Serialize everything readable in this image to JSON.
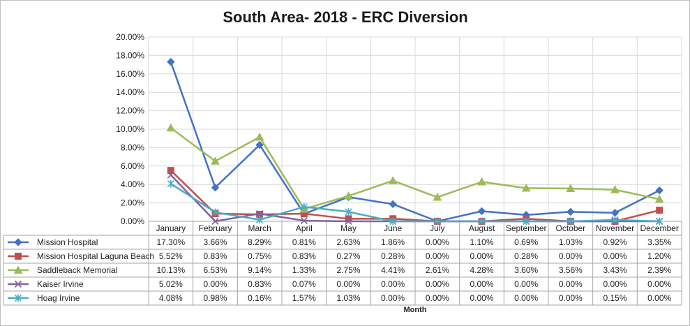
{
  "chart_data": {
    "type": "line",
    "title": "South Area- 2018  - ERC Diversion",
    "xlabel": "Month",
    "ylabel": "",
    "ylim": [
      0,
      0.2
    ],
    "yticks": [
      0,
      0.02,
      0.04,
      0.06,
      0.08,
      0.1,
      0.12,
      0.14,
      0.16,
      0.18,
      0.2
    ],
    "ytick_labels": [
      "0.00%",
      "2.00%",
      "4.00%",
      "6.00%",
      "8.00%",
      "10.00%",
      "12.00%",
      "14.00%",
      "16.00%",
      "18.00%",
      "20.00%"
    ],
    "grid": true,
    "legend": "data-table",
    "categories": [
      "January",
      "February",
      "March",
      "April",
      "May",
      "June",
      "July",
      "August",
      "September",
      "October",
      "November",
      "December"
    ],
    "series": [
      {
        "name": "Mission Hospital",
        "color": "#4472c4",
        "marker": "diamond",
        "values": [
          0.173,
          0.0366,
          0.0829,
          0.0081,
          0.0263,
          0.0186,
          0.0,
          0.011,
          0.0069,
          0.0103,
          0.0092,
          0.0335
        ],
        "labels": [
          "17.30%",
          "3.66%",
          "8.29%",
          "0.81%",
          "2.63%",
          "1.86%",
          "0.00%",
          "1.10%",
          "0.69%",
          "1.03%",
          "0.92%",
          "3.35%"
        ]
      },
      {
        "name": "Mission Hospital Laguna Beach",
        "color": "#c0504d",
        "marker": "square",
        "values": [
          0.0552,
          0.0083,
          0.0075,
          0.0083,
          0.0027,
          0.0028,
          0.0,
          0.0,
          0.0028,
          0.0,
          0.0,
          0.012
        ],
        "labels": [
          "5.52%",
          "0.83%",
          "0.75%",
          "0.83%",
          "0.27%",
          "0.28%",
          "0.00%",
          "0.00%",
          "0.28%",
          "0.00%",
          "0.00%",
          "1.20%"
        ]
      },
      {
        "name": "Saddleback Memorial",
        "color": "#9bbb59",
        "marker": "triangle",
        "values": [
          0.1013,
          0.0653,
          0.0914,
          0.0133,
          0.0275,
          0.0441,
          0.0261,
          0.0428,
          0.036,
          0.0356,
          0.0343,
          0.0239
        ],
        "labels": [
          "10.13%",
          "6.53%",
          "9.14%",
          "1.33%",
          "2.75%",
          "4.41%",
          "2.61%",
          "4.28%",
          "3.60%",
          "3.56%",
          "3.43%",
          "2.39%"
        ]
      },
      {
        "name": "Kaiser Irvine",
        "color": "#8064a2",
        "marker": "x",
        "values": [
          0.0502,
          0.0,
          0.0083,
          0.0007,
          0.0,
          0.0,
          0.0,
          0.0,
          0.0,
          0.0,
          0.0,
          0.0
        ],
        "labels": [
          "5.02%",
          "0.00%",
          "0.83%",
          "0.07%",
          "0.00%",
          "0.00%",
          "0.00%",
          "0.00%",
          "0.00%",
          "0.00%",
          "0.00%",
          "0.00%"
        ]
      },
      {
        "name": "Hoag Irvine",
        "color": "#4bacc6",
        "marker": "star",
        "values": [
          0.0408,
          0.0098,
          0.0016,
          0.0157,
          0.0103,
          0.0,
          0.0,
          0.0,
          0.0,
          0.0,
          0.0015,
          0.0
        ],
        "labels": [
          "4.08%",
          "0.98%",
          "0.16%",
          "1.57%",
          "1.03%",
          "0.00%",
          "0.00%",
          "0.00%",
          "0.00%",
          "0.00%",
          "0.15%",
          "0.00%"
        ]
      }
    ]
  }
}
